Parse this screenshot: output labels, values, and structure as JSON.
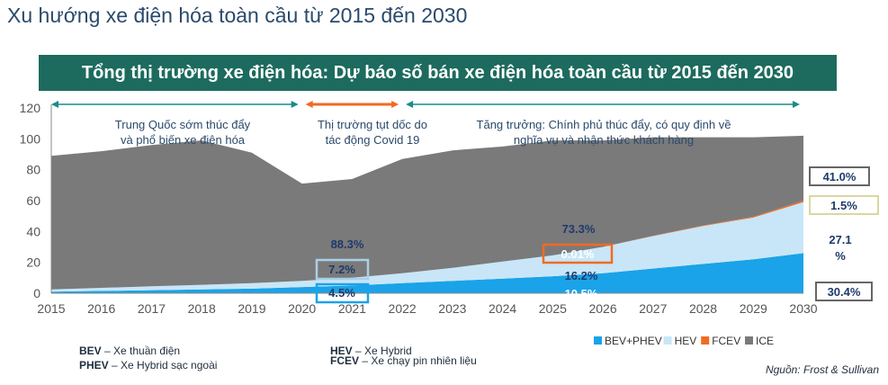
{
  "page_title": "Xu hướng xe điện hóa toàn cầu từ 2015 đến 2030",
  "colors": {
    "banner": "#1d6b5e",
    "bev_phev": "#1aa3e8",
    "hev": "#c8e6f8",
    "fcev": "#f26a21",
    "ice": "#7a7a7a",
    "arrow_teal": "#1d8a8a",
    "arrow_orange": "#f26a21"
  },
  "legend_abbr": {
    "bev_code": "BEV",
    "bev_desc": " – Xe thuần điện",
    "phev_code": "PHEV",
    "phev_desc": " – Xe Hybrid sạc ngoài",
    "hev_code": "HEV",
    "hev_desc": " – Xe Hybrid",
    "fcev_code": "FCEV",
    "fcev_desc": " – Xe chạy pin nhiên liệu"
  },
  "source": "Nguồn: Frost & Sullivan",
  "chart_data": {
    "type": "area",
    "title": "Tổng thị trường xe điện hóa: Dự báo số bán xe điện hóa toàn cầu từ 2015 đến 2030",
    "x": [
      2015,
      2016,
      2017,
      2018,
      2019,
      2020,
      2021,
      2022,
      2023,
      2024,
      2025,
      2026,
      2027,
      2028,
      2029,
      2030
    ],
    "ylim": [
      0,
      120
    ],
    "yticks": [
      0,
      20,
      40,
      60,
      80,
      100,
      120
    ],
    "stacked": true,
    "series": [
      {
        "name": "BEV+PHEV",
        "values": [
          1,
          1.5,
          2,
          2.5,
          3,
          4,
          5,
          6.5,
          8,
          9.5,
          11,
          13,
          16,
          19,
          22,
          26
        ]
      },
      {
        "name": "HEV",
        "values": [
          1.5,
          2,
          2.5,
          3,
          3.5,
          4,
          5,
          6.5,
          8.5,
          11,
          13.5,
          17,
          21,
          24.5,
          27,
          33
        ]
      },
      {
        "name": "FCEV",
        "values": [
          0,
          0,
          0,
          0,
          0,
          0,
          0,
          0,
          0,
          0,
          0,
          0,
          0.2,
          0.4,
          0.6,
          1
        ]
      },
      {
        "name": "ICE",
        "values": [
          86.5,
          88.5,
          91.5,
          93.5,
          84.5,
          63,
          64,
          74,
          76,
          74.5,
          74.5,
          69,
          63.8,
          57.1,
          51.4,
          42
        ]
      }
    ],
    "legend": [
      "BEV+PHEV",
      "HEV",
      "FCEV",
      "ICE"
    ],
    "legend_position": "bottom-right",
    "periods": [
      {
        "text_line1": "Trung Quốc sớm thúc đẩy",
        "text_line2": "và phổ biến xe điện hóa",
        "from": 2015,
        "to": 2020
      },
      {
        "text_line1": "Thị trường tụt dốc do",
        "text_line2": "tác động Covid 19",
        "from": 2020,
        "to": 2022
      },
      {
        "text_line1": "Tăng trưởng: Chính phủ thúc đẩy, có quy định về",
        "text_line2": "nghĩa vụ và nhận thức khách hàng",
        "from": 2022,
        "to": 2030
      }
    ],
    "annotations_2021": {
      "ice": "88.3%",
      "hev": "7.2%",
      "bev_phev": "4.5%"
    },
    "annotations_2025": {
      "ice": "73.3%",
      "fcev": "0.01%",
      "hev": "16.2%",
      "bev_phev": "10.5%"
    },
    "annotations_2030": {
      "ice": "41.0%",
      "fcev": "1.5%",
      "hev_line1": "27.1",
      "hev_line2": "%",
      "bev_phev": "30.4%"
    }
  }
}
